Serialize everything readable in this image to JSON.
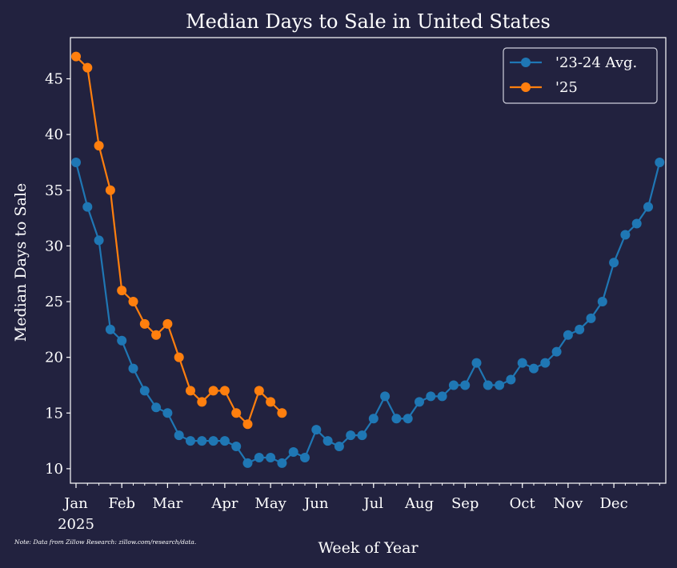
{
  "colors": {
    "background": "#22223f",
    "axis": "#ffffff",
    "avg_series": "#1f77b4",
    "y25_series": "#ff7f0e",
    "legend_bg": "#22223f",
    "legend_border": "#cfd0dc"
  },
  "chart_data": {
    "type": "line",
    "title": "Median Days to Sale in United States",
    "xlabel": "Week of Year",
    "ylabel": "Median Days to Sale",
    "note": "Note: Data from Zillow Research: zillow.com/research/data.",
    "xlim": [
      0,
      51
    ],
    "ylim": [
      8.7,
      48.7
    ],
    "yticks": [
      10,
      15,
      20,
      25,
      30,
      35,
      40,
      45
    ],
    "xticks": [
      {
        "week": 0,
        "label": "Jan",
        "sublabel": "2025"
      },
      {
        "week": 4,
        "label": "Feb"
      },
      {
        "week": 8,
        "label": "Mar"
      },
      {
        "week": 13,
        "label": "Apr"
      },
      {
        "week": 17,
        "label": "May"
      },
      {
        "week": 21,
        "label": "Jun"
      },
      {
        "week": 26,
        "label": "Jul"
      },
      {
        "week": 30,
        "label": "Aug"
      },
      {
        "week": 34,
        "label": "Sep"
      },
      {
        "week": 39,
        "label": "Oct"
      },
      {
        "week": 43,
        "label": "Nov"
      },
      {
        "week": 47,
        "label": "Dec"
      }
    ],
    "legend_position": "top-right",
    "series": [
      {
        "name": "'23-24 Avg.",
        "x": [
          0,
          1,
          2,
          3,
          4,
          5,
          6,
          7,
          8,
          9,
          10,
          11,
          12,
          13,
          14,
          15,
          16,
          17,
          18,
          19,
          20,
          21,
          22,
          23,
          24,
          25,
          26,
          27,
          28,
          29,
          30,
          31,
          32,
          33,
          34,
          35,
          36,
          37,
          38,
          39,
          40,
          41,
          42,
          43,
          44,
          45,
          46,
          47,
          48,
          49,
          50,
          51
        ],
        "y": [
          37.5,
          33.5,
          30.5,
          22.5,
          21.5,
          19,
          17,
          15.5,
          15,
          13,
          12.5,
          12.5,
          12.5,
          12.5,
          12,
          10.5,
          11,
          11,
          10.5,
          11.5,
          11,
          13.5,
          12.5,
          12,
          13,
          13,
          14.5,
          16.5,
          14.5,
          14.5,
          16,
          16.5,
          16.5,
          17.5,
          17.5,
          19.5,
          17.5,
          17.5,
          18,
          19.5,
          19,
          19.5,
          20.5,
          22,
          22.5,
          23.5,
          25,
          28.5,
          31,
          32,
          33.5,
          37.5
        ]
      },
      {
        "name": "'25",
        "x": [
          0,
          1,
          2,
          3,
          4,
          5,
          6,
          7,
          8,
          9,
          10,
          11,
          12,
          13,
          14,
          15,
          16,
          17,
          18
        ],
        "y": [
          47,
          46,
          39,
          35,
          26,
          25,
          23,
          22,
          23,
          20,
          17,
          16,
          17,
          17,
          15,
          14,
          17,
          16,
          15
        ]
      }
    ]
  }
}
